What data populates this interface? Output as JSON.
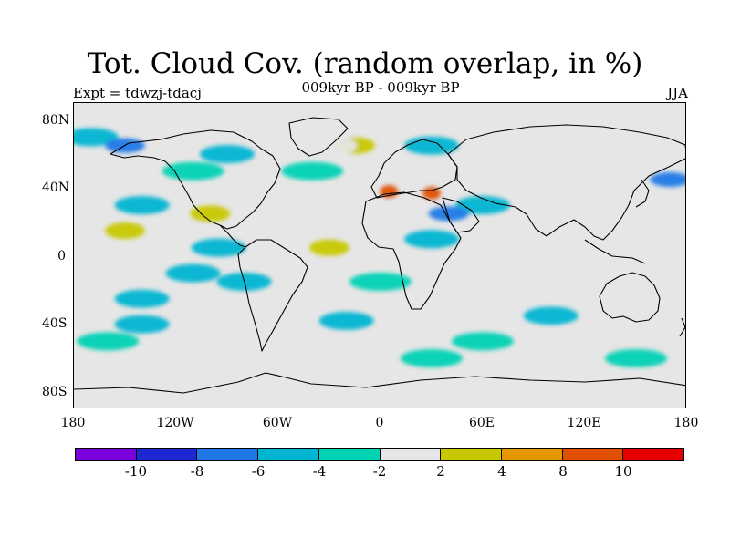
{
  "header": {
    "title": "Tot. Cloud Cov. (random overlap, in %)",
    "subtitle": "009kyr BP - 009kyr BP",
    "experiment": "Expt = tdwzj-tdacj",
    "season": "JJA"
  },
  "map": {
    "lat_ticks": [
      "80N",
      "40N",
      "0",
      "40S",
      "80S"
    ],
    "lon_ticks": [
      "180",
      "120W",
      "60W",
      "0",
      "60E",
      "120E",
      "180"
    ],
    "lon_range": [
      -180,
      180
    ],
    "lat_range": [
      -90,
      90
    ],
    "background_color": "#e6e6e6",
    "coastline_color": "#000000",
    "anomaly_regions": [
      {
        "lon": -100,
        "lat": 25,
        "level": 6
      },
      {
        "lon": -150,
        "lat": 15,
        "level": 6
      },
      {
        "lon": -30,
        "lat": 5,
        "level": 6
      },
      {
        "lon": -15,
        "lat": 65,
        "level": 6
      },
      {
        "lon": 5,
        "lat": 38,
        "level": 8
      },
      {
        "lon": 30,
        "lat": 37,
        "level": 8
      },
      {
        "lon": -30,
        "lat": 65,
        "level": 5
      },
      {
        "lon": 140,
        "lat": 25,
        "level": 5
      },
      {
        "lon": 155,
        "lat": -10,
        "level": 5
      },
      {
        "lon": 165,
        "lat": 30,
        "level": 5
      },
      {
        "lon": 120,
        "lat": 35,
        "level": 5
      },
      {
        "lon": -160,
        "lat": -5,
        "level": 5
      },
      {
        "lon": -40,
        "lat": 50,
        "level": 4
      },
      {
        "lon": -110,
        "lat": 50,
        "level": 4
      },
      {
        "lon": 0,
        "lat": -15,
        "level": 4
      },
      {
        "lon": -160,
        "lat": -50,
        "level": 4
      },
      {
        "lon": 60,
        "lat": -50,
        "level": 4
      },
      {
        "lon": 150,
        "lat": -60,
        "level": 4
      },
      {
        "lon": 30,
        "lat": -60,
        "level": 4
      },
      {
        "lon": -140,
        "lat": 30,
        "level": 3
      },
      {
        "lon": -95,
        "lat": 5,
        "level": 3
      },
      {
        "lon": 60,
        "lat": 30,
        "level": 3
      },
      {
        "lon": -170,
        "lat": 70,
        "level": 3
      },
      {
        "lon": -140,
        "lat": -25,
        "level": 3
      },
      {
        "lon": -80,
        "lat": -15,
        "level": 3
      },
      {
        "lon": 30,
        "lat": 10,
        "level": 3
      },
      {
        "lon": 100,
        "lat": -35,
        "level": 3
      },
      {
        "lon": -90,
        "lat": 60,
        "level": 3
      },
      {
        "lon": 30,
        "lat": 65,
        "level": 3
      },
      {
        "lon": -20,
        "lat": -38,
        "level": 3
      },
      {
        "lon": -140,
        "lat": -40,
        "level": 3
      },
      {
        "lon": -110,
        "lat": -10,
        "level": 3
      },
      {
        "lon": 40,
        "lat": 25,
        "level": 2
      },
      {
        "lon": -150,
        "lat": 65,
        "level": 2
      },
      {
        "lon": 170,
        "lat": 45,
        "level": 2
      }
    ]
  },
  "colorbar": {
    "colors": [
      "#7a00dc",
      "#1e28d2",
      "#1e78e6",
      "#00b4d2",
      "#00d2b4",
      "#e6e6e6",
      "#c8c800",
      "#e69600",
      "#e05000",
      "#e60000"
    ],
    "labels": [
      "-10",
      "-8",
      "-6",
      "-4",
      "-2",
      "2",
      "4",
      "8",
      "10"
    ]
  }
}
